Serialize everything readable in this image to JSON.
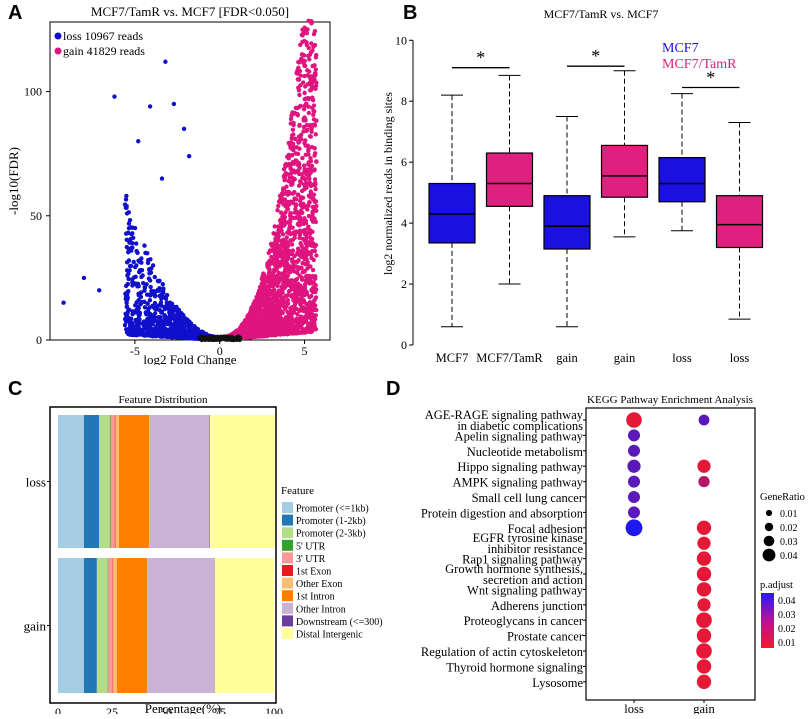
{
  "chart_data": [
    {
      "panel": "A",
      "type": "scatter",
      "title": "MCF7/TamR vs. MCF7  [FDR<0.050]",
      "xlabel": "log2 Fold Change",
      "ylabel": "-log10(FDR)",
      "xlim": [
        -10,
        6.5
      ],
      "ylim": [
        0,
        128
      ],
      "xticks": [
        {
          "v": -5,
          "label": "-5"
        },
        {
          "v": 0,
          "label": "0"
        },
        {
          "v": 5,
          "label": "5"
        }
      ],
      "yticks": [
        {
          "v": 0,
          "label": "0"
        },
        {
          "v": 50,
          "label": "50"
        },
        {
          "v": 100,
          "label": "100"
        }
      ],
      "legend": [
        {
          "label": "loss 10967 reads",
          "color": "#1010cc"
        },
        {
          "label": "gain 41829 reads",
          "color": "#e0147e"
        }
      ],
      "series": [
        {
          "name": "loss",
          "count": 10967,
          "color": "#1010cc"
        },
        {
          "name": "gain",
          "count": 41829,
          "color": "#e0147e"
        }
      ]
    },
    {
      "panel": "B",
      "type": "box",
      "title": "MCF7/TamR vs. MCF7",
      "ylabel": "log2 normalized reads in binding sites",
      "ylim": [
        0,
        10.6
      ],
      "yticks": [
        0,
        2,
        4,
        6,
        8,
        10
      ],
      "legend": [
        {
          "label": "MCF7",
          "color": "#1a10e0"
        },
        {
          "label": "MCF7/TamR",
          "color": "#e0207e"
        }
      ],
      "boxes": [
        {
          "label": "MCF7",
          "group": "MCF7",
          "min": 0.6,
          "q1": 3.35,
          "median": 4.3,
          "q3": 5.3,
          "max": 8.2
        },
        {
          "label": "MCF7/TamR",
          "group": "MCF7/TamR",
          "min": 2.0,
          "q1": 4.55,
          "median": 5.3,
          "q3": 6.3,
          "max": 8.85
        },
        {
          "label": "gain",
          "group": "MCF7",
          "min": 0.6,
          "q1": 3.15,
          "median": 3.9,
          "q3": 4.9,
          "max": 7.5
        },
        {
          "label": "gain",
          "group": "MCF7/TamR",
          "min": 3.55,
          "q1": 4.85,
          "median": 5.55,
          "q3": 6.55,
          "max": 9.0
        },
        {
          "label": "loss",
          "group": "MCF7",
          "min": 3.75,
          "q1": 4.7,
          "median": 5.3,
          "q3": 6.15,
          "max": 8.25
        },
        {
          "label": "loss",
          "group": "MCF7/TamR",
          "min": 0.85,
          "q1": 3.2,
          "median": 3.95,
          "q3": 4.9,
          "max": 7.3
        }
      ],
      "significance": [
        {
          "from": 0,
          "to": 1,
          "y": 9.1,
          "label": "*"
        },
        {
          "from": 2,
          "to": 3,
          "y": 9.15,
          "label": "*"
        },
        {
          "from": 4,
          "to": 5,
          "y": 8.45,
          "label": "*"
        }
      ]
    },
    {
      "panel": "C",
      "type": "stacked-bar",
      "title": "Feature Distribution",
      "xlabel": "Percentage(%)",
      "xticks": [
        0,
        25,
        50,
        75,
        100
      ],
      "legend_title": "Feature",
      "categories": [
        "loss",
        "gain"
      ],
      "features": [
        {
          "name": "Promoter (<=1kb)",
          "color": "#a6cde3"
        },
        {
          "name": "Promoter (1-2kb)",
          "color": "#2178b4"
        },
        {
          "name": "Promoter (2-3kb)",
          "color": "#b2de8a"
        },
        {
          "name": "5' UTR",
          "color": "#33a12c"
        },
        {
          "name": "3' UTR",
          "color": "#fb9999"
        },
        {
          "name": "1st Exon",
          "color": "#e41a1c"
        },
        {
          "name": "Other Exon",
          "color": "#fdbe6f"
        },
        {
          "name": "1st Intron",
          "color": "#ff7f00"
        },
        {
          "name": "Other Intron",
          "color": "#cab2d6"
        },
        {
          "name": "Downstream (<=300)",
          "color": "#6a3d9a"
        },
        {
          "name": "Distal Intergenic",
          "color": "#ffff99"
        }
      ],
      "values": {
        "loss": [
          12,
          7,
          5,
          0.3,
          2,
          0.3,
          1.6,
          14,
          28,
          0.2,
          30
        ],
        "gain": [
          12,
          6,
          5,
          0.3,
          2,
          0.3,
          1.7,
          14,
          31,
          0.2,
          27.5
        ]
      }
    },
    {
      "panel": "D",
      "type": "dot",
      "title": "KEGG Pathway Enrichment Analysis",
      "columns": [
        "loss",
        "gain"
      ],
      "size_legend_title": "GeneRatio",
      "size_legend": [
        0.01,
        0.02,
        0.03,
        0.04
      ],
      "color_legend_title": "p.adjust",
      "color_legend": [
        0.04,
        0.03,
        0.02,
        0.01
      ],
      "pathways": [
        [
          "AGE-RAGE signaling pathway",
          "in diabetic complications"
        ],
        [
          "Apelin signaling pathway"
        ],
        [
          "Nucleotide metabolism"
        ],
        [
          "Hippo signaling pathway"
        ],
        [
          "AMPK signaling pathway"
        ],
        [
          "Small cell lung cancer"
        ],
        [
          "Protein digestion and absorption"
        ],
        [
          "Focal adhesion"
        ],
        [
          "EGFR tyrosine kinase",
          "inhibitor resistance"
        ],
        [
          "Rap1 signaling pathway"
        ],
        [
          "Growth hormone synthesis,",
          "secretion and action"
        ],
        [
          "Wnt signaling pathway"
        ],
        [
          "Adherens junction"
        ],
        [
          "Proteoglycans in cancer"
        ],
        [
          "Prostate cancer"
        ],
        [
          "Regulation of actin cytoskeleton"
        ],
        [
          "Thyroid hormone signaling"
        ],
        [
          "Lysosome"
        ]
      ],
      "dots": [
        {
          "row": 0,
          "col": "loss",
          "ratio": 0.04,
          "p": 0.012
        },
        {
          "row": 0,
          "col": "gain",
          "ratio": 0.02,
          "p": 0.035
        },
        {
          "row": 1,
          "col": "loss",
          "ratio": 0.025,
          "p": 0.035
        },
        {
          "row": 2,
          "col": "loss",
          "ratio": 0.025,
          "p": 0.035
        },
        {
          "row": 3,
          "col": "loss",
          "ratio": 0.03,
          "p": 0.035
        },
        {
          "row": 3,
          "col": "gain",
          "ratio": 0.03,
          "p": 0.012
        },
        {
          "row": 4,
          "col": "loss",
          "ratio": 0.025,
          "p": 0.035
        },
        {
          "row": 4,
          "col": "gain",
          "ratio": 0.022,
          "p": 0.02
        },
        {
          "row": 5,
          "col": "loss",
          "ratio": 0.025,
          "p": 0.035
        },
        {
          "row": 6,
          "col": "loss",
          "ratio": 0.025,
          "p": 0.035
        },
        {
          "row": 7,
          "col": "loss",
          "ratio": 0.045,
          "p": 0.045
        },
        {
          "row": 7,
          "col": "gain",
          "ratio": 0.035,
          "p": 0.012
        },
        {
          "row": 8,
          "col": "gain",
          "ratio": 0.03,
          "p": 0.012
        },
        {
          "row": 9,
          "col": "gain",
          "ratio": 0.035,
          "p": 0.012
        },
        {
          "row": 10,
          "col": "gain",
          "ratio": 0.035,
          "p": 0.012
        },
        {
          "row": 11,
          "col": "gain",
          "ratio": 0.035,
          "p": 0.012
        },
        {
          "row": 12,
          "col": "gain",
          "ratio": 0.03,
          "p": 0.012
        },
        {
          "row": 13,
          "col": "gain",
          "ratio": 0.04,
          "p": 0.012
        },
        {
          "row": 14,
          "col": "gain",
          "ratio": 0.035,
          "p": 0.012
        },
        {
          "row": 15,
          "col": "gain",
          "ratio": 0.04,
          "p": 0.012
        },
        {
          "row": 16,
          "col": "gain",
          "ratio": 0.035,
          "p": 0.012
        },
        {
          "row": 17,
          "col": "gain",
          "ratio": 0.035,
          "p": 0.012
        }
      ]
    }
  ],
  "panel_labels": [
    "A",
    "B",
    "C",
    "D"
  ]
}
